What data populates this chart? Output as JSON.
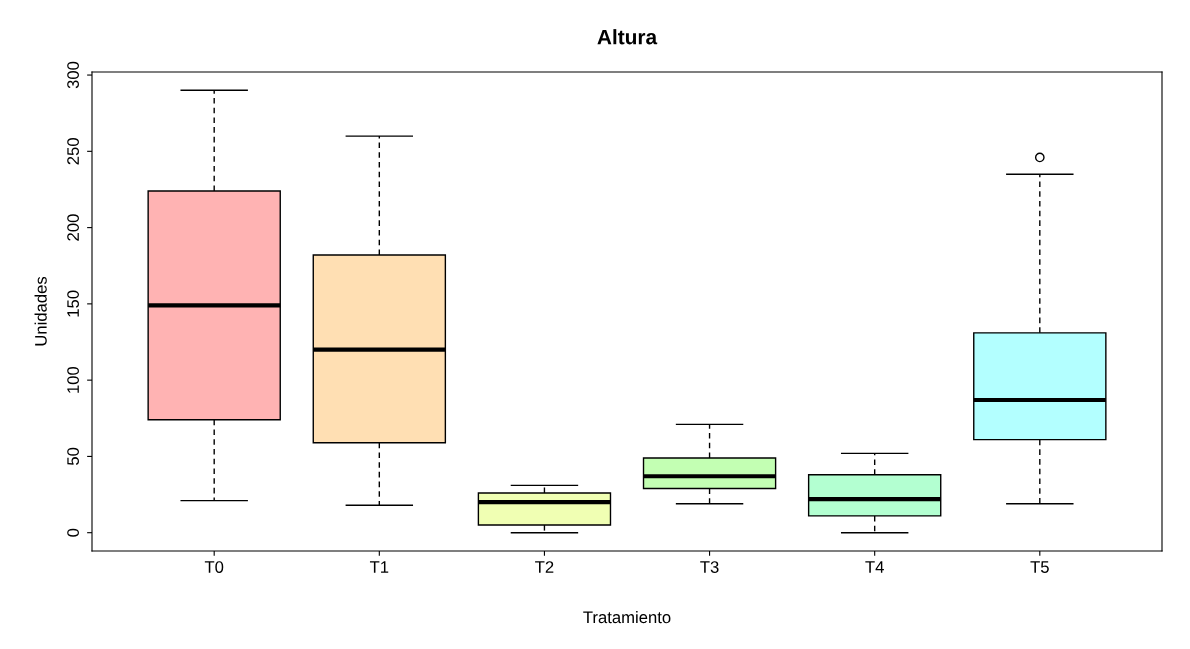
{
  "chart_data": {
    "type": "box",
    "title": "Altura",
    "xlabel": "Tratamiento",
    "ylabel": "Unidades",
    "categories": [
      "T0",
      "T1",
      "T2",
      "T3",
      "T4",
      "T5"
    ],
    "boxes": [
      {
        "low": 21,
        "q1": 74,
        "median": 149,
        "q3": 224,
        "high": 290
      },
      {
        "low": 18,
        "q1": 59,
        "median": 120,
        "q3": 182,
        "high": 260
      },
      {
        "low": 0,
        "q1": 5,
        "median": 20,
        "q3": 26,
        "high": 31
      },
      {
        "low": 19,
        "q1": 29,
        "median": 37,
        "q3": 49,
        "high": 71
      },
      {
        "low": 0,
        "q1": 11,
        "median": 22,
        "q3": 38,
        "high": 52
      },
      {
        "low": 19,
        "q1": 61,
        "median": 87,
        "q3": 131,
        "high": 235,
        "outliers": [
          246
        ]
      }
    ],
    "colors": [
      "#ffb3b3",
      "#ffdfb3",
      "#f0ffb3",
      "#c3ffb3",
      "#b3ffd1",
      "#b3ffff"
    ],
    "ylim": [
      -12,
      302
    ],
    "yticks": [
      0,
      50,
      100,
      150,
      200,
      250,
      300
    ],
    "grid": false,
    "legend": false
  }
}
